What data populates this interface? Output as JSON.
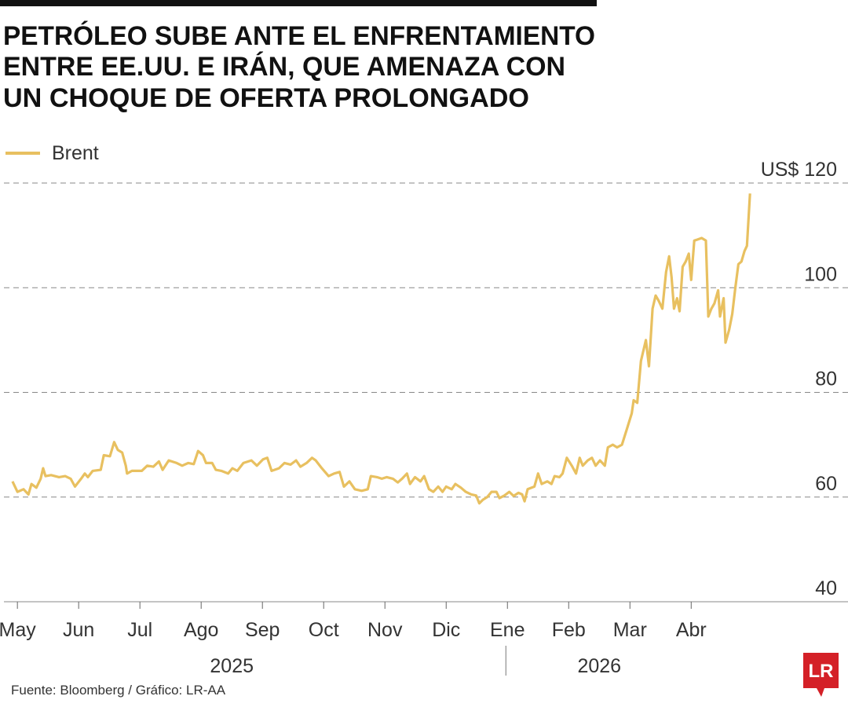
{
  "chart_data": {
    "type": "line",
    "title": [
      "PETRÓLEO SUBE ANTE EL ENFRENTAMIENTO",
      "ENTRE EE.UU. E IRÁN, QUE AMENAZA CON",
      "UN CHOQUE DE OFERTA PROLONGADO"
    ],
    "source": "Fuente: Bloomberg / Gráfico: LR-AA",
    "logo": "LR",
    "xlim": [
      -0.22,
      13.56
    ],
    "xticks": [
      {
        "value": 0,
        "label": "May"
      },
      {
        "value": 1,
        "label": "Jun"
      },
      {
        "value": 2,
        "label": "Jul"
      },
      {
        "value": 3,
        "label": "Ago"
      },
      {
        "value": 4,
        "label": "Sep"
      },
      {
        "value": 5,
        "label": "Oct"
      },
      {
        "value": 6,
        "label": "Nov"
      },
      {
        "value": 7,
        "label": "Dic"
      },
      {
        "value": 8,
        "label": "Ene"
      },
      {
        "value": 9,
        "label": "Feb"
      },
      {
        "value": 10,
        "label": "Mar"
      },
      {
        "value": 11,
        "label": "Abr"
      }
    ],
    "x_groups": [
      {
        "label": "2025",
        "from": 0,
        "to": 7
      },
      {
        "label": "2026",
        "from": 8,
        "to": 11
      }
    ],
    "ylim": [
      40,
      120
    ],
    "yticks": [
      40,
      60,
      80,
      100,
      {
        "value": 120,
        "label": "US$ 120"
      }
    ],
    "grid": true,
    "legend": "top-left",
    "x": [
      -0.08,
      0,
      0.1,
      0.18,
      0.23,
      0.31,
      0.38,
      0.42,
      0.46,
      0.55,
      0.68,
      0.78,
      0.87,
      0.94,
      1.04,
      1.1,
      1.15,
      1.23,
      1.36,
      1.41,
      1.51,
      1.58,
      1.64,
      1.71,
      1.77,
      1.79,
      1.87,
      2.03,
      2.12,
      2.22,
      2.31,
      2.37,
      2.47,
      2.6,
      2.69,
      2.79,
      2.88,
      2.95,
      3.03,
      3.08,
      3.18,
      3.24,
      3.33,
      3.44,
      3.51,
      3.59,
      3.69,
      3.82,
      3.91,
      4.01,
      4.08,
      4.15,
      4.27,
      4.36,
      4.46,
      4.55,
      4.62,
      4.72,
      4.81,
      4.87,
      4.97,
      5.08,
      5.17,
      5.26,
      5.33,
      5.42,
      5.51,
      5.62,
      5.72,
      5.77,
      5.87,
      5.95,
      6.03,
      6.13,
      6.21,
      6.28,
      6.36,
      6.41,
      6.49,
      6.58,
      6.64,
      6.72,
      6.79,
      6.87,
      6.94,
      7.0,
      7.09,
      7.15,
      7.24,
      7.32,
      7.41,
      7.49,
      7.54,
      7.6,
      7.67,
      7.74,
      7.82,
      7.87,
      7.95,
      8.03,
      8.1,
      8.18,
      8.24,
      8.28,
      8.33,
      8.44,
      8.5,
      8.56,
      8.65,
      8.72,
      8.77,
      8.85,
      8.9,
      8.97,
      9.05,
      9.12,
      9.18,
      9.23,
      9.31,
      9.38,
      9.44,
      9.51,
      9.59,
      9.64,
      9.72,
      9.79,
      9.87,
      9.95,
      10.03,
      10.06,
      10.12,
      10.18,
      10.26,
      10.31,
      10.37,
      10.42,
      10.47,
      10.53,
      10.59,
      10.64,
      10.68,
      10.72,
      10.77,
      10.81,
      10.86,
      10.91,
      10.96,
      11.0,
      11.05,
      11.1,
      11.17,
      11.24,
      11.28,
      11.33,
      11.38,
      11.44,
      11.47,
      11.53,
      11.56,
      11.62,
      11.67,
      11.72,
      11.77,
      11.82,
      11.87,
      11.91,
      11.96
    ],
    "series": [
      {
        "name": "Brent",
        "color": "#e8c060",
        "values": [
          63,
          61,
          61.5,
          60.5,
          62.5,
          61.8,
          63.5,
          65.5,
          64,
          64.2,
          63.8,
          64,
          63.5,
          62,
          63.5,
          64.5,
          63.8,
          65,
          65.2,
          68,
          67.8,
          70.5,
          69,
          68.5,
          66,
          64.5,
          65,
          65,
          66,
          65.8,
          66.8,
          65.2,
          67,
          66.5,
          66,
          66.5,
          66.3,
          68.8,
          68,
          66.5,
          66.5,
          65.2,
          65,
          64.5,
          65.5,
          65,
          66.5,
          67,
          66,
          67.2,
          67.5,
          65,
          65.5,
          66.5,
          66.2,
          67,
          65.8,
          66.5,
          67.5,
          67,
          65.5,
          64,
          64.5,
          64.8,
          62,
          63,
          61.5,
          61.2,
          61.5,
          64,
          63.8,
          63.5,
          63.8,
          63.5,
          62.8,
          63.5,
          64.5,
          62.5,
          63.8,
          63,
          64,
          61.5,
          61,
          62,
          61,
          62,
          61.5,
          62.5,
          61.8,
          61,
          60.5,
          60.3,
          58.8,
          59.5,
          60,
          61,
          61,
          59.8,
          60.3,
          61,
          60.2,
          60.8,
          60.5,
          59.2,
          61.5,
          62,
          64.5,
          62.5,
          63,
          62.5,
          64,
          63.8,
          64.5,
          67.5,
          66,
          64.5,
          67.5,
          66,
          67,
          67.5,
          66,
          67,
          66,
          69.5,
          70,
          69.5,
          70,
          73,
          76,
          78.5,
          78,
          86,
          90,
          85,
          96,
          98.5,
          97.5,
          96,
          103,
          106,
          102,
          96,
          98,
          95.5,
          104,
          105,
          106.5,
          101.5,
          109,
          109.2,
          109.5,
          109,
          94.5,
          96,
          97,
          99.5,
          94.5,
          98,
          89.5,
          92,
          95,
          100,
          104.5,
          105,
          107,
          108,
          118
        ]
      }
    ]
  }
}
